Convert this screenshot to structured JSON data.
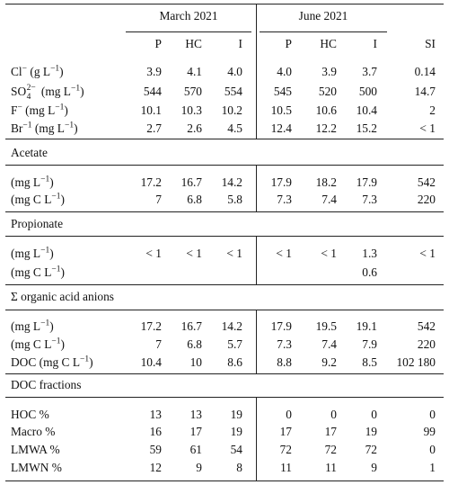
{
  "header": {
    "group_march": "March 2021",
    "group_june": "June 2021",
    "columns": [
      "P",
      "HC",
      "I",
      "P",
      "HC",
      "I",
      "SI"
    ]
  },
  "ions": [
    {
      "label": "Cl",
      "sup": "−",
      "unit": "(g L",
      "unit_sup": "−1",
      "unit_end": ")",
      "values": [
        "3.9",
        "4.1",
        "4.0",
        "4.0",
        "3.9",
        "3.7",
        "0.14"
      ]
    },
    {
      "label": "SO",
      "sub": "4",
      "sup": "2−",
      "unit": "(mg L",
      "unit_sup": "−1",
      "unit_end": ")",
      "values": [
        "544",
        "570",
        "554",
        "545",
        "520",
        "500",
        "14.7"
      ]
    },
    {
      "label": "F",
      "sup": "−",
      "unit": "(mg L",
      "unit_sup": "−1",
      "unit_end": ")",
      "values": [
        "10.1",
        "10.3",
        "10.2",
        "10.5",
        "10.6",
        "10.4",
        "2"
      ]
    },
    {
      "label": "Br",
      "sup": "−1",
      "unit": "(mg L",
      "unit_sup": "−1",
      "unit_end": ")",
      "values": [
        "2.7",
        "2.6",
        "4.5",
        "12.4",
        "12.2",
        "15.2",
        "< 1"
      ]
    }
  ],
  "sections": {
    "acetate": {
      "title": "Acetate",
      "rows": [
        {
          "label": "(mg L",
          "label_sup": "−1",
          "label_end": ")",
          "values": [
            "17.2",
            "16.7",
            "14.2",
            "17.9",
            "18.2",
            "17.9",
            "542"
          ]
        },
        {
          "label": "(mg C L",
          "label_sup": "−1",
          "label_end": ")",
          "values": [
            "7",
            "6.8",
            "5.8",
            "7.3",
            "7.4",
            "7.3",
            "220"
          ]
        }
      ]
    },
    "propionate": {
      "title": "Propionate",
      "rows": [
        {
          "label": "(mg L",
          "label_sup": "−1",
          "label_end": ")",
          "values": [
            "< 1",
            "< 1",
            "< 1",
            "< 1",
            "< 1",
            "1.3",
            "< 1"
          ]
        },
        {
          "label": "(mg C L",
          "label_sup": "−1",
          "label_end": ")",
          "values": [
            "",
            "",
            "",
            "",
            "",
            "0.6",
            ""
          ]
        }
      ]
    },
    "organic": {
      "title": "Σ organic acid anions",
      "rows": [
        {
          "label": "(mg L",
          "label_sup": "−1",
          "label_end": ")",
          "values": [
            "17.2",
            "16.7",
            "14.2",
            "17.9",
            "19.5",
            "19.1",
            "542"
          ]
        },
        {
          "label": "(mg C L",
          "label_sup": "−1",
          "label_end": ")",
          "values": [
            "7",
            "6.8",
            "5.7",
            "7.3",
            "7.4",
            "7.9",
            "220"
          ]
        },
        {
          "label": "DOC (mg C L",
          "label_sup": "−1",
          "label_end": ")",
          "values": [
            "10.4",
            "10",
            "8.6",
            "8.8",
            "9.2",
            "8.5",
            "102 180"
          ]
        }
      ]
    },
    "doc": {
      "title": "DOC fractions",
      "rows": [
        {
          "label": "HOC %",
          "values": [
            "13",
            "13",
            "19",
            "0",
            "0",
            "0",
            "0"
          ]
        },
        {
          "label": "Macro %",
          "values": [
            "16",
            "17",
            "19",
            "17",
            "17",
            "19",
            "99"
          ]
        },
        {
          "label": "LMWA %",
          "values": [
            "59",
            "61",
            "54",
            "72",
            "72",
            "72",
            "0"
          ]
        },
        {
          "label": "LMWN %",
          "values": [
            "12",
            "9",
            "8",
            "11",
            "11",
            "9",
            "1"
          ]
        }
      ]
    }
  }
}
